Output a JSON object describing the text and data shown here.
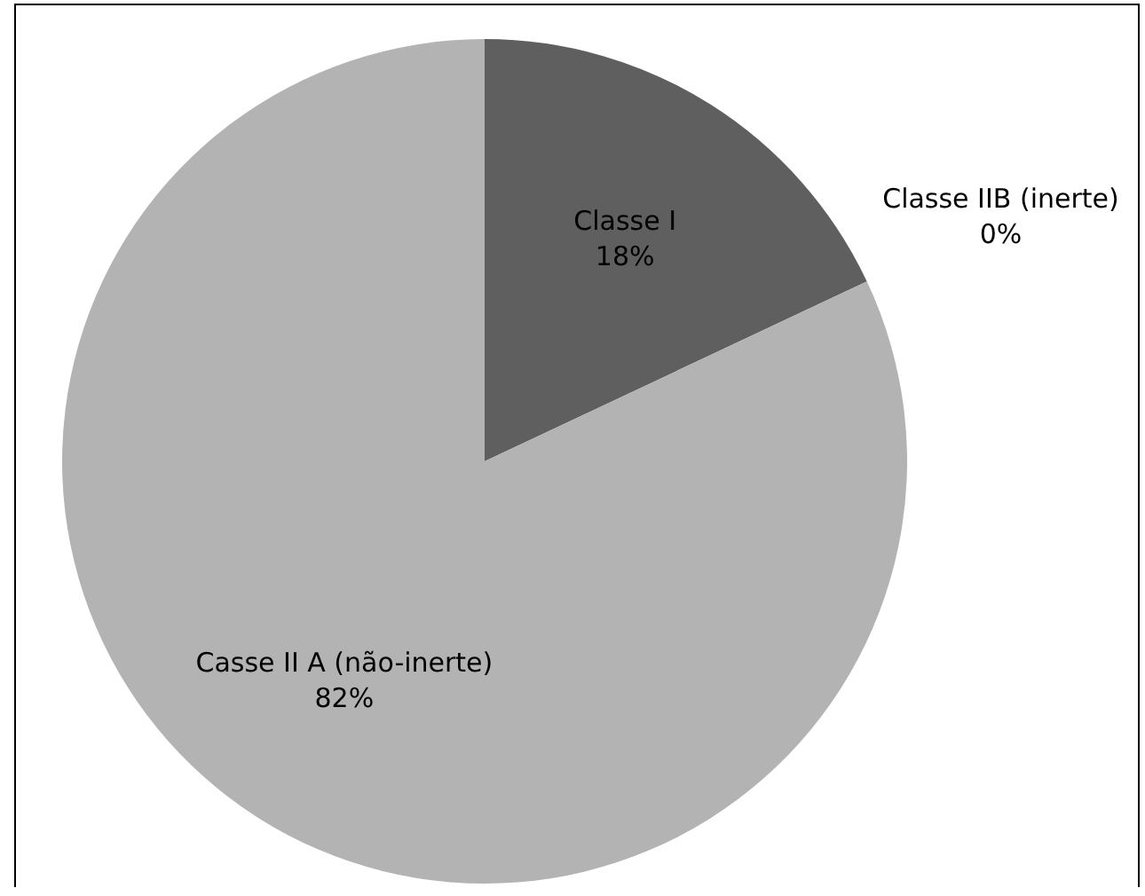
{
  "chart_data": {
    "type": "pie",
    "categories": [
      "Classe I",
      "Classe IIB (inerte)",
      "Casse II A (não-inerte)"
    ],
    "values": [
      18,
      0,
      82
    ],
    "colors": [
      "#5f5f5f",
      "#8c8c8c",
      "#b3b3b3"
    ],
    "value_labels": [
      "18%",
      "0%",
      "82%"
    ],
    "legend": false
  }
}
